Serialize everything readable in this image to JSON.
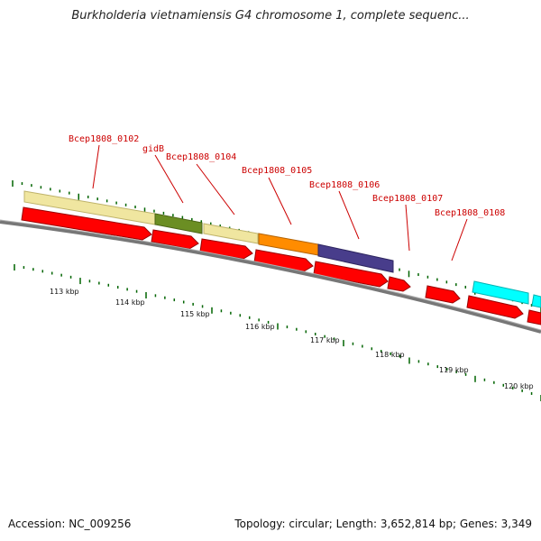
{
  "title": "Burkholderia vietnamiensis G4 chromosome 1, complete sequenc...",
  "footer": {
    "accession": "Accession: NC_009256",
    "summary": "Topology: circular; Length: 3,652,814 bp; Genes: 3,349"
  },
  "gene_labels": [
    "Bcep1808_0102",
    "gidB",
    "Bcep1808_0104",
    "Bcep1808_0105",
    "Bcep1808_0106",
    "Bcep1808_0107",
    "Bcep1808_0108"
  ],
  "ticks": [
    "113 kbp",
    "114 kbp",
    "115 kbp",
    "116 kbp",
    "117 kbp",
    "118 kbp",
    "119 kbp",
    "120 kbp"
  ],
  "colors": {
    "cds": "#ff0000",
    "gene_tan": "#f0e6a0",
    "gene_green": "#6b8e23",
    "gene_orange": "#ff8c00",
    "gene_purple": "#483d8b",
    "gene_cyan": "#00ffff",
    "backbone": "#777777",
    "tick": "#006400",
    "label": "#cc0000"
  }
}
